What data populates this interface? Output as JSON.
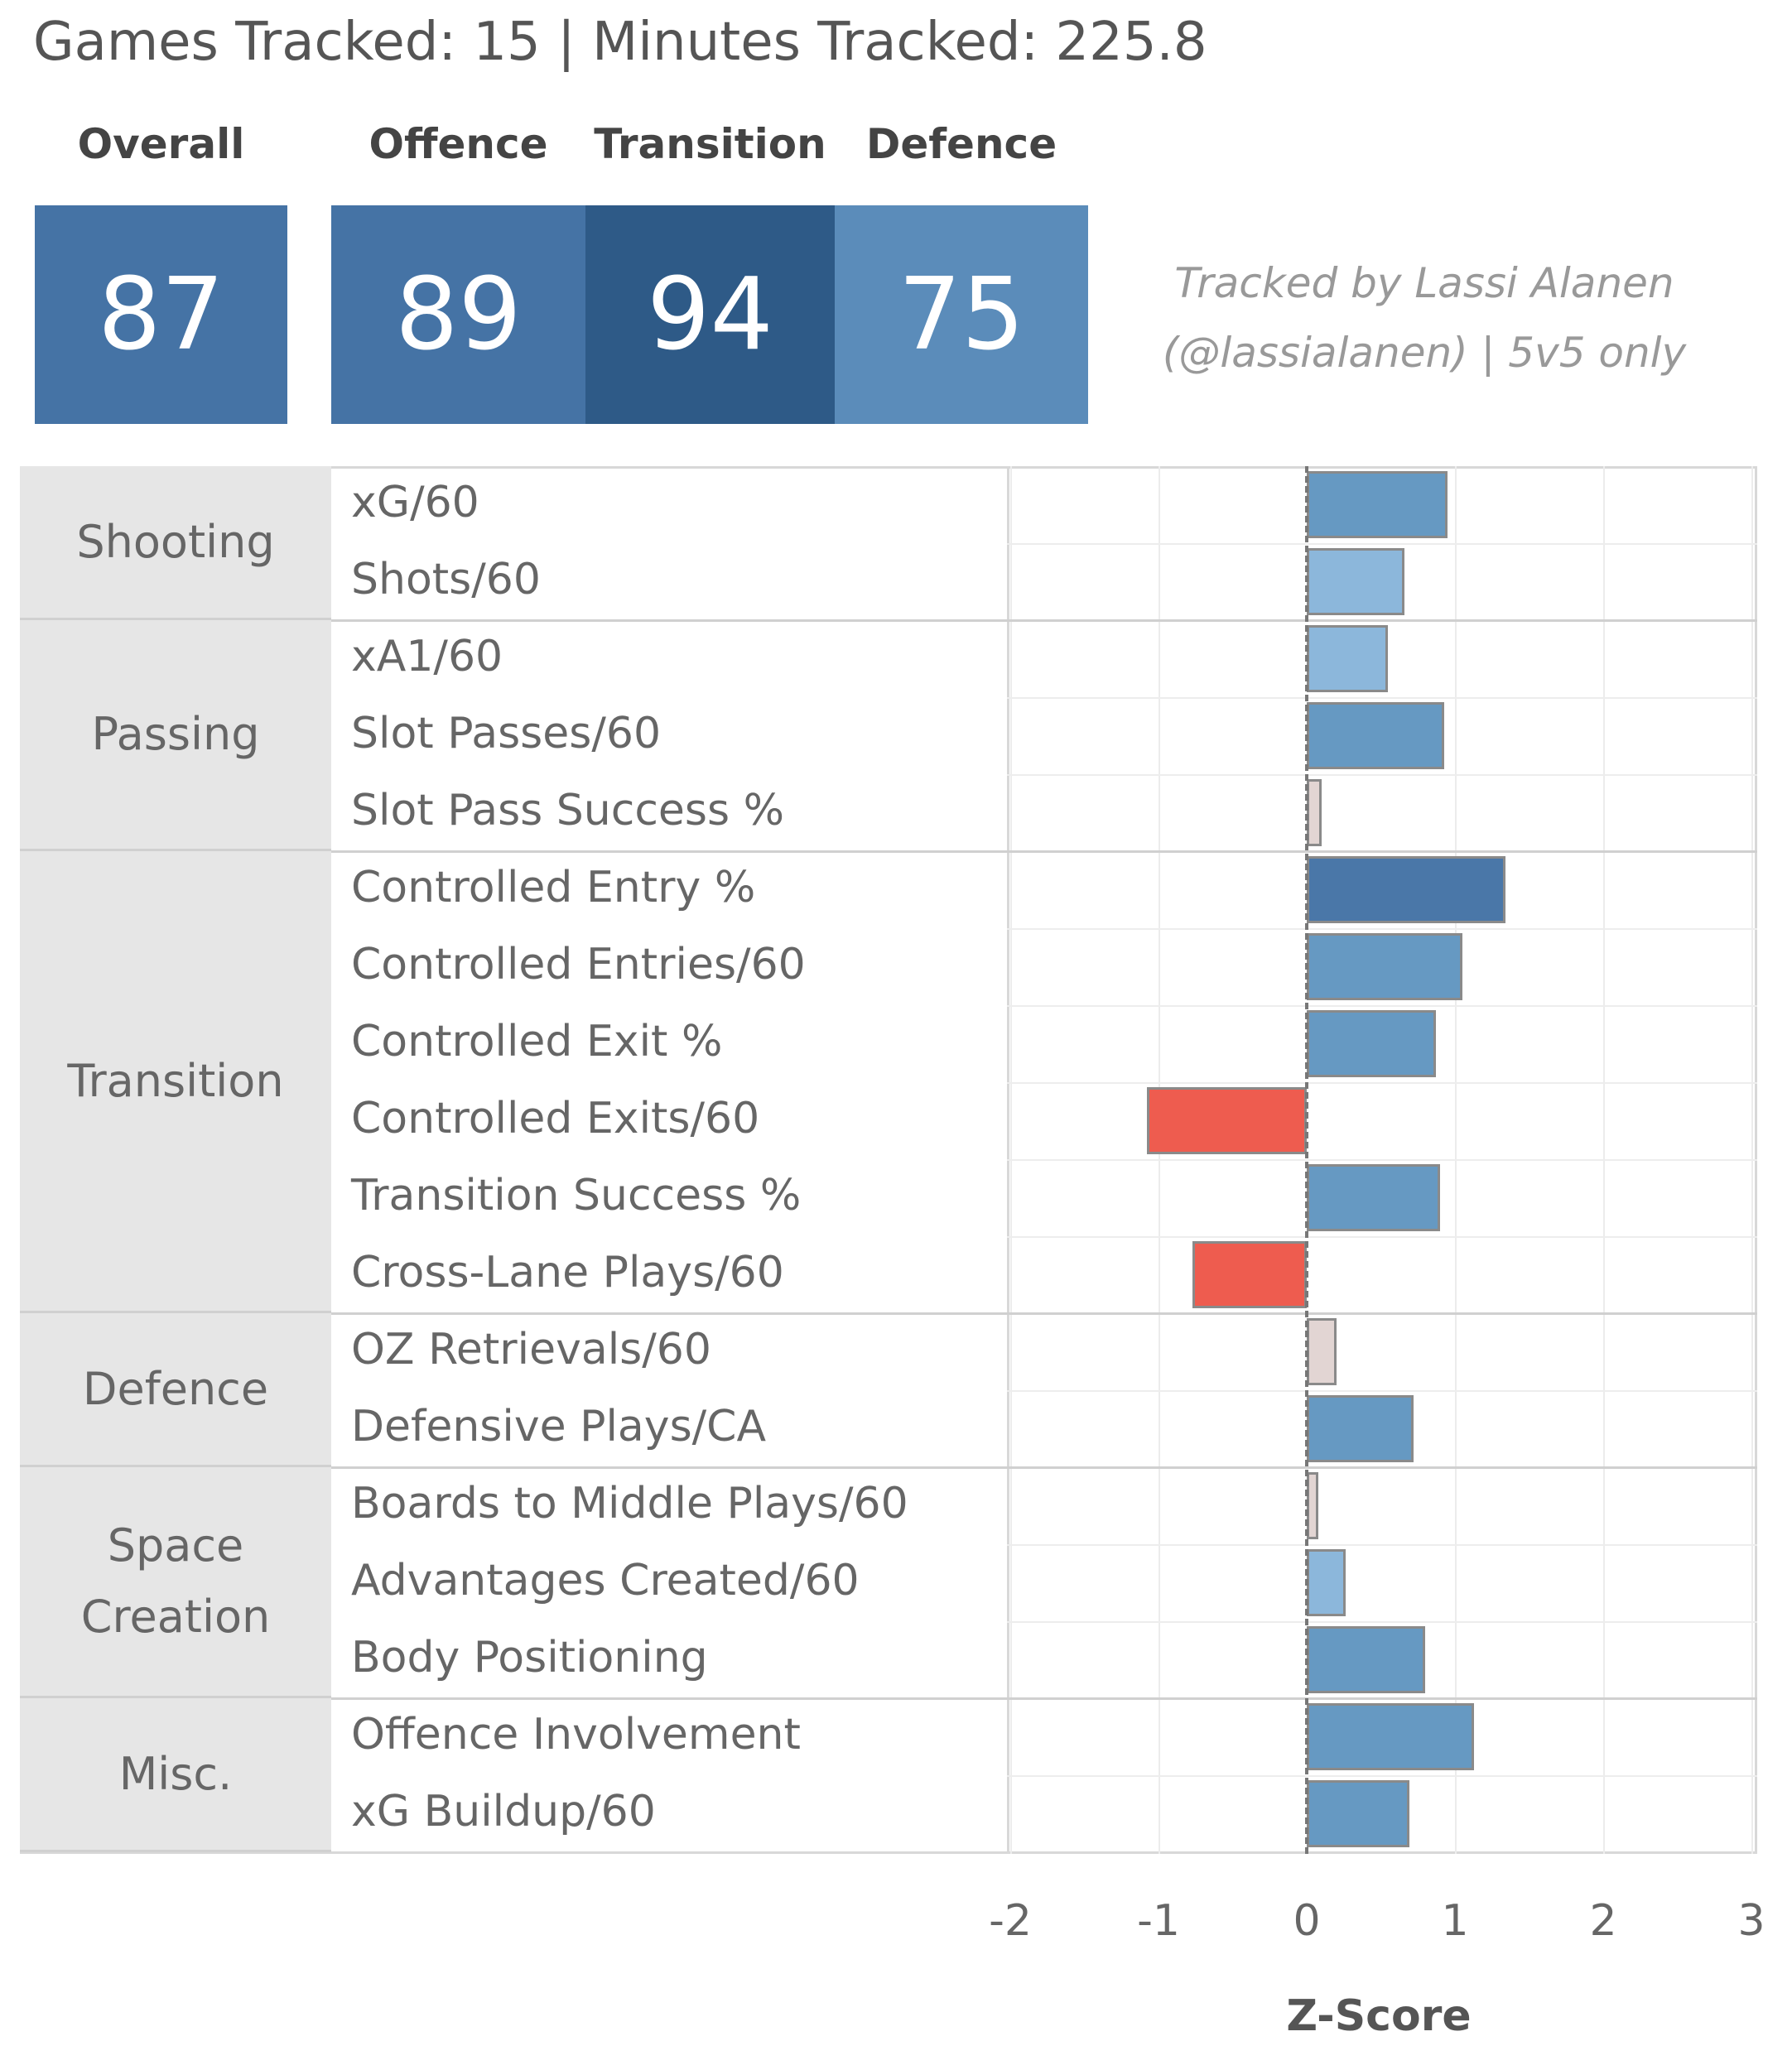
{
  "header": {
    "summary": "Games Tracked: 15 | Minutes Tracked: 225.8",
    "note": "Tracked by Lassi Alanen (@lassialanen) | 5v5 only"
  },
  "ratings": [
    {
      "label": "Overall",
      "value": "87",
      "color": "#4573a5"
    },
    {
      "label": "Offence",
      "value": "89",
      "color": "#4573a5"
    },
    {
      "label": "Transition",
      "value": "94",
      "color": "#2e5a87"
    },
    {
      "label": "Defence",
      "value": "75",
      "color": "#5b8cba"
    }
  ],
  "chart_data": {
    "type": "bar",
    "orientation": "horizontal",
    "xlabel": "Z-Score",
    "xlim": [
      -2,
      3
    ],
    "xticks": [
      "-2",
      "-1",
      "0",
      "1",
      "2",
      "3"
    ],
    "grid": true,
    "groups": [
      {
        "name": "Shooting",
        "metrics": [
          {
            "label": "xG/60",
            "value": 0.95,
            "color": "#6699c2"
          },
          {
            "label": "Shots/60",
            "value": 0.66,
            "color": "#8cb7db"
          }
        ]
      },
      {
        "name": "Passing",
        "metrics": [
          {
            "label": "xA1/60",
            "value": 0.55,
            "color": "#8cb7db"
          },
          {
            "label": "Slot Passes/60",
            "value": 0.93,
            "color": "#6699c2"
          },
          {
            "label": "Slot Pass Success %",
            "value": 0.1,
            "color": "#e2d5d3"
          }
        ]
      },
      {
        "name": "Transition",
        "metrics": [
          {
            "label": "Controlled Entry %",
            "value": 1.34,
            "color": "#4a77a8"
          },
          {
            "label": "Controlled Entries/60",
            "value": 1.05,
            "color": "#6699c2"
          },
          {
            "label": "Controlled Exit %",
            "value": 0.87,
            "color": "#6699c2"
          },
          {
            "label": "Controlled Exits/60",
            "value": -1.08,
            "color": "#ee5c4f"
          },
          {
            "label": "Transition Success %",
            "value": 0.9,
            "color": "#6699c2"
          },
          {
            "label": "Cross-Lane Plays/60",
            "value": -0.77,
            "color": "#ee5c4f"
          }
        ]
      },
      {
        "name": "Defence",
        "metrics": [
          {
            "label": "OZ Retrievals/60",
            "value": 0.2,
            "color": "#e2d5d3"
          },
          {
            "label": "Defensive Plays/CA",
            "value": 0.72,
            "color": "#6699c2"
          }
        ]
      },
      {
        "name": "Space Creation",
        "metrics": [
          {
            "label": "Boards to Middle Plays/60",
            "value": 0.08,
            "color": "#e2d5d3"
          },
          {
            "label": "Advantages Created/60",
            "value": 0.26,
            "color": "#8cb7db"
          },
          {
            "label": "Body Positioning",
            "value": 0.8,
            "color": "#6699c2"
          }
        ]
      },
      {
        "name": "Misc.",
        "metrics": [
          {
            "label": "Offence Involvement",
            "value": 1.13,
            "color": "#6699c2"
          },
          {
            "label": "xG Buildup/60",
            "value": 0.69,
            "color": "#6699c2"
          }
        ]
      }
    ]
  }
}
